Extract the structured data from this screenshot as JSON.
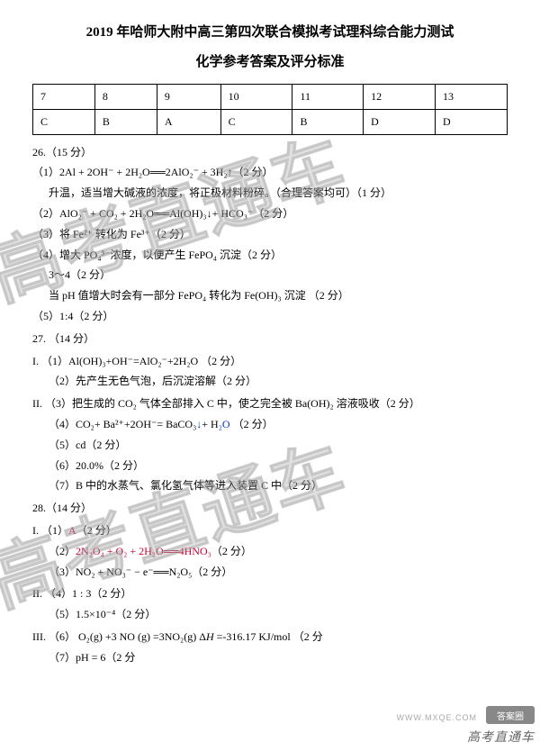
{
  "title": "2019 年哈师大附中高三第四次联合模拟考试理科综合能力测试",
  "subtitle": "化学参考答案及评分标准",
  "answer_table": {
    "headers": [
      "7",
      "8",
      "9",
      "10",
      "11",
      "12",
      "13"
    ],
    "row": [
      "C",
      "B",
      "A",
      "C",
      "B",
      "D",
      "D"
    ]
  },
  "q26": {
    "num": "26.（15 分）",
    "p1": "（1）2Al + 2OH⁻ + 2H₂O══2AlO₂⁻ + 3H₂↑（2 分）",
    "p1b": "升温，适当增大碱液的浓度，将正极材料粉碎。（合理答案均可）（1 分）",
    "p2": "（2）AlO₂⁻ + CO₂ + 2H₂O══Al(OH)₃↓+ HCO₃⁻（2 分）",
    "p3": "（3）将 Fe²⁺ 转化为 Fe³⁺（2 分）",
    "p4": "（4）增大 PO₄³⁻浓度，以便产生 FePO₄ 沉淀（2 分）",
    "p4b": "3～4（2 分）",
    "p4c": "当 pH 值增大时会有一部分 FePO₄ 转化为 Fe(OH)₃ 沉淀 （2 分）",
    "p5": "（5）1:4（2 分）"
  },
  "q27": {
    "num": "27. （14 分）",
    "I": "I.",
    "i1": "（1）Al(OH)₃+OH⁻=AlO₂⁻+2H₂O （2 分）",
    "i2": "（2）先产生无色气泡，后沉淀溶解（2 分）",
    "II": "II.",
    "ii3": "（3）把生成的 CO₂ 气体全部排入 C 中，使之完全被 Ba(OH)₂ 溶液吸收（2 分）",
    "ii4a": "（4）CO₂+ Ba²⁺+2OH⁻= BaCO₃",
    "ii4b": "↓",
    "ii4c": "+ H",
    "ii4d": "₂O",
    "ii4e": "  （2 分）",
    "ii5": "（5）cd（2 分）",
    "ii6": "（6）20.0%（2 分）",
    "ii7": "（7）B 中的水蒸气、氯化氢气体等进入装置 C 中（2 分）"
  },
  "q28": {
    "num": "28.（14 分）",
    "I": "I.",
    "i1a": "（1）",
    "i1b": "A",
    "i1c": "（2 分）",
    "i2a": "（2）",
    "i2b": "2N₂O₄ + O₂ + 2H₂O══4HNO₃",
    "i2c": "（2 分）",
    "i3": "（3）NO₂ + NO₃⁻ − e⁻══N₂O₅（2 分）",
    "II": "II.",
    "ii4": "（4）1 : 3（2 分）",
    "ii5": "（5）1.5×10⁻⁴（2 分）",
    "III": "III.",
    "iii6a": "（6） O₂(g) +3 NO (g) =3NO₂(g)  Δ",
    "iii6b": "H",
    "iii6c": " =-316.17 KJ/mol （2 分",
    "iii7": "（7）pH = 6（2 分"
  },
  "watermark_text": "高考直通车",
  "badges": {
    "daanquan": "答案圈",
    "gkztc": "高考直通车",
    "mxqe": "WWW.MXQE.COM"
  }
}
